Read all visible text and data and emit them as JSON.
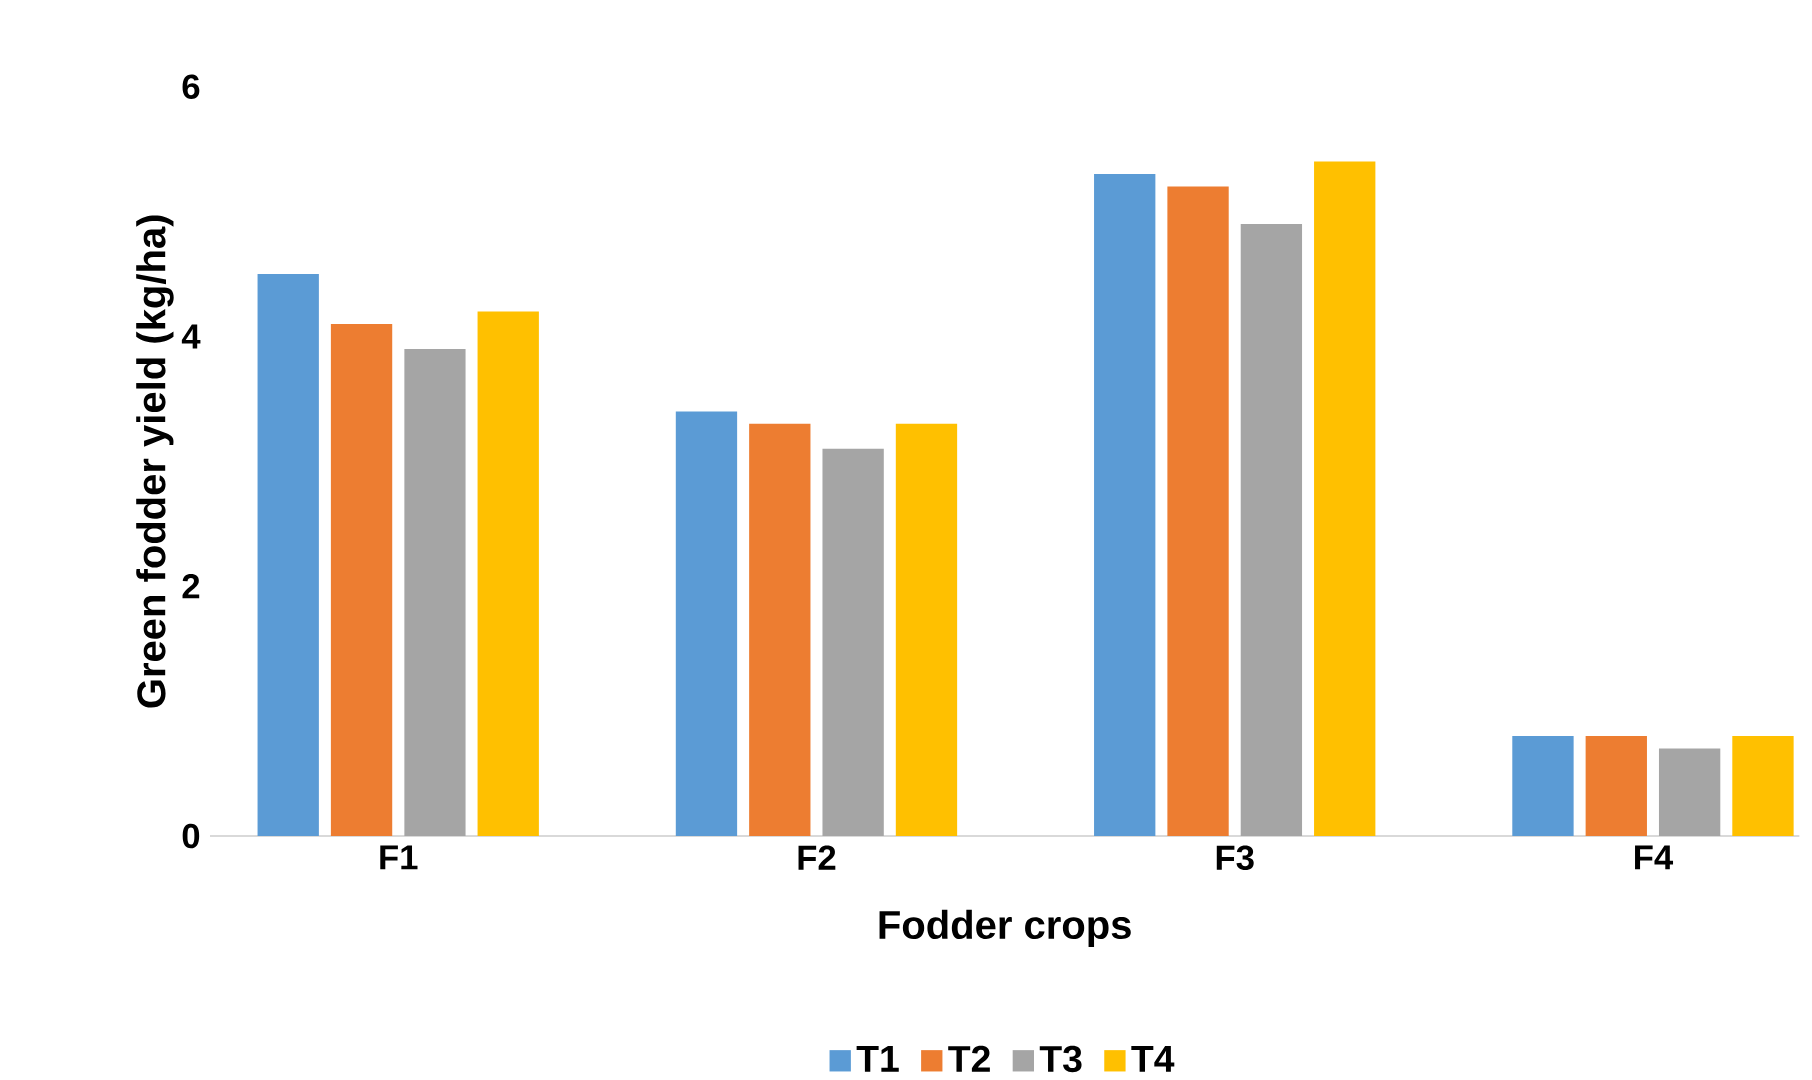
{
  "chart_data": {
    "type": "bar",
    "xlabel": "Fodder crops",
    "ylabel": "Green fodder yield (kg/ha)",
    "categories": [
      "F1",
      "F2",
      "F3",
      "F4"
    ],
    "series": [
      {
        "name": "T1",
        "color": "#5b9bd5",
        "values": [
          4.5,
          3.4,
          5.3,
          0.8
        ]
      },
      {
        "name": "T2",
        "color": "#ed7d31",
        "values": [
          4.1,
          3.3,
          5.2,
          0.8
        ]
      },
      {
        "name": "T3",
        "color": "#a5a5a5",
        "values": [
          3.9,
          3.1,
          4.9,
          0.7
        ]
      },
      {
        "name": "T4",
        "color": "#ffc000",
        "values": [
          4.2,
          3.3,
          5.4,
          0.8
        ]
      }
    ],
    "ylim": [
      0,
      6
    ],
    "yticks": [
      0,
      2,
      4,
      6
    ],
    "grid": false,
    "legend": "bottom"
  }
}
